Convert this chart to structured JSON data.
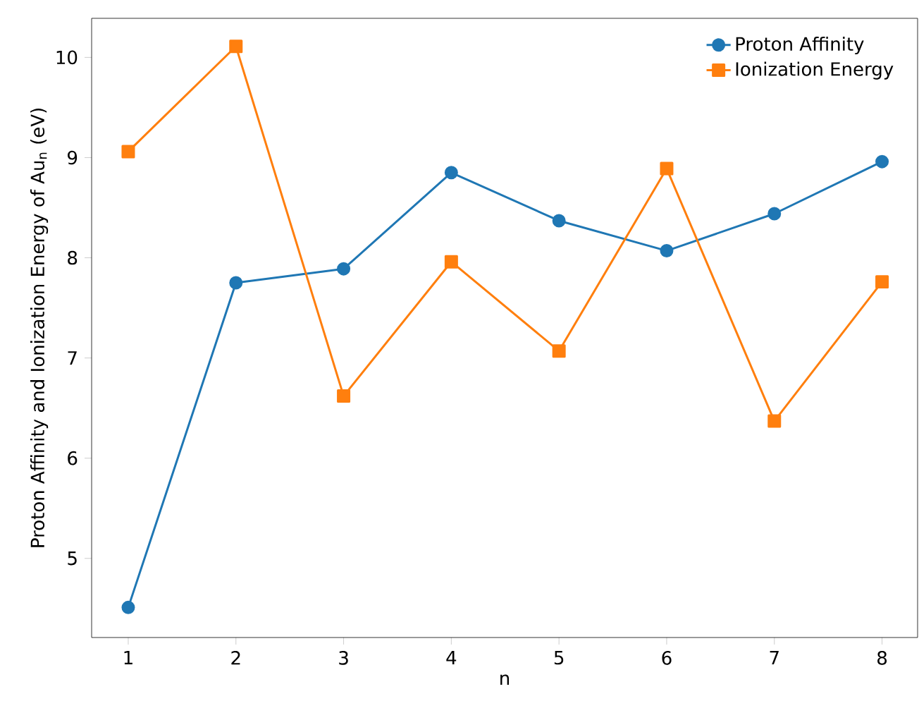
{
  "chart_data": {
    "type": "line",
    "xlabel": "n",
    "ylabel": "Proton Affinity and Ionization Energy of Au$_{n}$ (eV)",
    "x": [
      1,
      2,
      3,
      4,
      5,
      6,
      7,
      8
    ],
    "series": [
      {
        "name": "Proton Affinity",
        "color": "#1f77b4",
        "marker": "circle",
        "values": [
          4.51,
          7.75,
          7.89,
          8.85,
          8.37,
          8.07,
          8.44,
          8.96
        ]
      },
      {
        "name": "Ionization Energy",
        "color": "#ff7f0e",
        "marker": "square",
        "values": [
          9.06,
          10.11,
          6.62,
          7.96,
          7.07,
          8.89,
          6.37,
          7.76
        ]
      }
    ],
    "xlim": [
      0.66,
      8.33
    ],
    "ylim": [
      4.21,
      10.39
    ],
    "xticks": [
      1,
      2,
      3,
      4,
      5,
      6,
      7,
      8
    ],
    "yticks": [
      5,
      6,
      7,
      8,
      9,
      10
    ],
    "grid": false,
    "legend": "top right",
    "line_style": "solid"
  }
}
